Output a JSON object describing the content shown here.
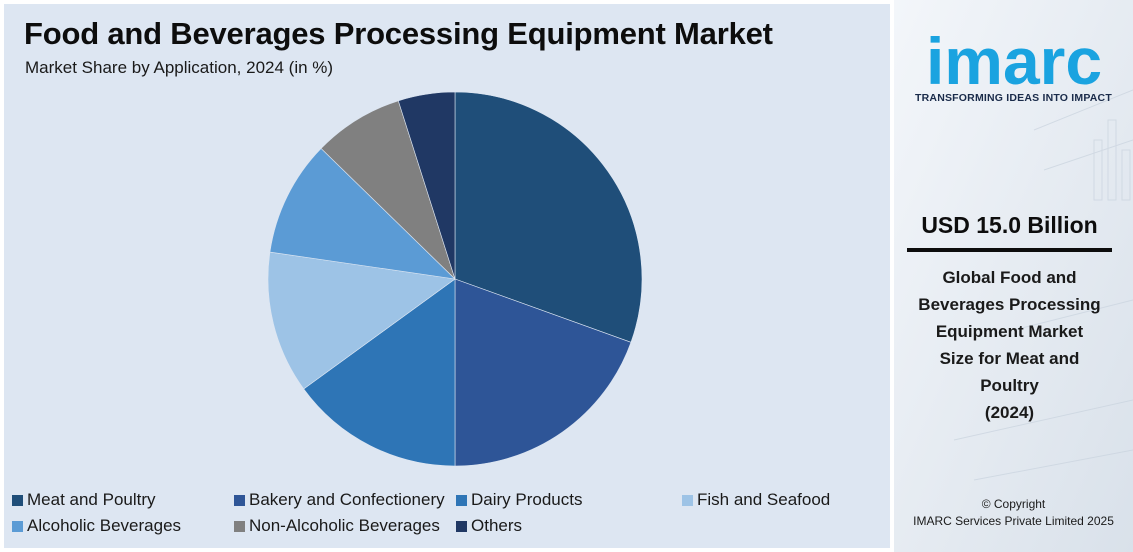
{
  "chart_data": {
    "type": "pie",
    "title": "Food and Beverages Processing Equipment Market",
    "subtitle": "Market Share by Application, 2024 (in %)",
    "slices": [
      {
        "label": "Meat and Poultry",
        "value": 30.5,
        "color": "#1f4e79"
      },
      {
        "label": "Bakery and Confectionery",
        "value": 19.5,
        "color": "#2e5597"
      },
      {
        "label": "Dairy Products",
        "value": 15.0,
        "color": "#2e75b6"
      },
      {
        "label": "Fish and Seafood",
        "value": 12.3,
        "color": "#9dc3e6"
      },
      {
        "label": "Alcoholic Beverages",
        "value": 10.0,
        "color": "#5b9bd5"
      },
      {
        "label": "Non-Alcoholic Beverages",
        "value": 7.8,
        "color": "#808080"
      },
      {
        "label": "Others",
        "value": 4.9,
        "color": "#203864"
      }
    ],
    "legend_position": "bottom"
  },
  "brand": {
    "logo_text": "imarc",
    "tagline": "TRANSFORMING IDEAS INTO IMPACT",
    "logo_color": "#1aa3e0"
  },
  "highlight": {
    "value": "USD 15.0 Billion",
    "caption_lines": [
      "Global Food and",
      "Beverages Processing",
      "Equipment Market",
      "Size for Meat and",
      "Poultry",
      "(2024)"
    ]
  },
  "footer": {
    "line1": "© Copyright",
    "line2": "IMARC Services Private Limited 2025"
  }
}
